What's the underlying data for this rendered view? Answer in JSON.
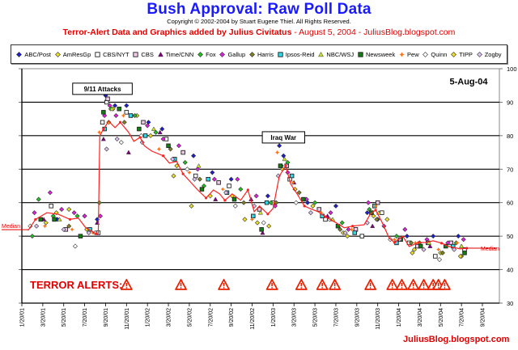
{
  "header": {
    "title": "Bush Approval:  Raw Poll Data",
    "copyright": "Copyright © 2002-2004 by Stuart Eugene Thiel.  All Rights Reserved.",
    "subtitle_bold": "Terror-Alert Data and Graphics added by Julius Civitatus",
    "subtitle_rest": " - August 5, 2004 - JuliusBlog.blogspot.com"
  },
  "footer": {
    "blog": "JuliusBlog.blogspot.com"
  },
  "colors": {
    "title": "#1a1aff",
    "accent": "#e00000",
    "median": "#ff2020"
  },
  "chart_data": {
    "type": "scatter",
    "title": "Bush Approval: Raw Poll Data",
    "date_stamp": "5-Aug-04",
    "xlabel": "",
    "ylabel": "",
    "y_axis_side": "right",
    "ylim": [
      30,
      100
    ],
    "yticks": [
      30,
      40,
      50,
      60,
      70,
      80,
      90,
      100
    ],
    "grid": true,
    "x_unit": "months since 1/20/01",
    "xlim": [
      0,
      44
    ],
    "xticks": [
      "1/20/01",
      "3/20/01",
      "5/20/01",
      "7/20/01",
      "9/20/01",
      "11/20/01",
      "1/20/02",
      "3/20/02",
      "5/20/02",
      "7/20/02",
      "9/20/02",
      "11/20/02",
      "1/20/03",
      "3/20/03",
      "5/20/03",
      "7/20/03",
      "9/20/03",
      "11/20/03",
      "1/20/04",
      "3/20/04",
      "5/20/04",
      "7/20/04",
      "9/20/04"
    ],
    "legend_position": "top",
    "legend": [
      {
        "name": "ABC/Post",
        "color": "#1c1cd0",
        "shape": "diamond"
      },
      {
        "name": "AmResGp",
        "color": "#e8e020",
        "shape": "diamond"
      },
      {
        "name": "CBS/NYT",
        "color": "#ffffff",
        "shape": "square"
      },
      {
        "name": "CBS",
        "color": "#f0c8e8",
        "shape": "square"
      },
      {
        "name": "Time/CNN",
        "color": "#800080",
        "shape": "triangle"
      },
      {
        "name": "Fox",
        "color": "#20c020",
        "shape": "diamond"
      },
      {
        "name": "Gallup",
        "color": "#e020e0",
        "shape": "diamond"
      },
      {
        "name": "Harris",
        "color": "#808020",
        "shape": "diamond"
      },
      {
        "name": "Ipsos-Reid",
        "color": "#30d8e8",
        "shape": "square"
      },
      {
        "name": "NBC/WSJ",
        "color": "#c8e030",
        "shape": "triangle"
      },
      {
        "name": "Newsweek",
        "color": "#108010",
        "shape": "square"
      },
      {
        "name": "Pew",
        "color": "#ff7010",
        "shape": "star"
      },
      {
        "name": "Quinn",
        "color": "#ffffff",
        "shape": "diamond"
      },
      {
        "name": "TIPP",
        "color": "#f0e020",
        "shape": "diamond"
      },
      {
        "name": "Zogby",
        "color": "#e0c0f0",
        "shape": "diamond"
      }
    ],
    "median": {
      "label": "Median",
      "points": [
        [
          0.6,
          51.7
        ],
        [
          1.3,
          55
        ],
        [
          2.4,
          57
        ],
        [
          3.5,
          56.5
        ],
        [
          4.6,
          55
        ],
        [
          5.4,
          55.4
        ],
        [
          6.1,
          52.5
        ],
        [
          7.1,
          50.7
        ],
        [
          7.3,
          50.7
        ],
        [
          7.45,
          80
        ],
        [
          7.8,
          82
        ],
        [
          8.3,
          84.3
        ],
        [
          8.9,
          82.4
        ],
        [
          9.4,
          84
        ],
        [
          10.2,
          81
        ],
        [
          10.7,
          78.3
        ],
        [
          11.3,
          79.5
        ],
        [
          11.7,
          77
        ],
        [
          12.4,
          75.4
        ],
        [
          13.5,
          74
        ],
        [
          14.1,
          71.8
        ],
        [
          14.8,
          72.3
        ],
        [
          15.4,
          68.6
        ],
        [
          16.1,
          66.2
        ],
        [
          16.8,
          63.8
        ],
        [
          17.6,
          61.4
        ],
        [
          18.3,
          63.8
        ],
        [
          18.9,
          62.6
        ],
        [
          19.4,
          60.7
        ],
        [
          20.1,
          62.6
        ],
        [
          20.9,
          60.7
        ],
        [
          21.6,
          63.8
        ],
        [
          22.2,
          57.3
        ],
        [
          22.7,
          59
        ],
        [
          23.5,
          56.6
        ],
        [
          24.0,
          58.3
        ],
        [
          24.6,
          67.9
        ],
        [
          25.2,
          71
        ],
        [
          25.7,
          65.5
        ],
        [
          26.3,
          62.6
        ],
        [
          27.0,
          59
        ],
        [
          27.5,
          58.3
        ],
        [
          28.3,
          57.3
        ],
        [
          29.0,
          55.8
        ],
        [
          29.9,
          54.2
        ],
        [
          30.8,
          52.5
        ],
        [
          31.6,
          53
        ],
        [
          32.7,
          53.4
        ],
        [
          33.3,
          56.6
        ],
        [
          33.8,
          57.8
        ],
        [
          34.4,
          54.2
        ],
        [
          35.1,
          49.4
        ],
        [
          35.6,
          48.1
        ],
        [
          36.4,
          50
        ],
        [
          37.0,
          46.9
        ],
        [
          37.9,
          48.1
        ],
        [
          38.6,
          48.1
        ],
        [
          39.3,
          48.6
        ],
        [
          40.1,
          47.9
        ],
        [
          40.8,
          46.9
        ],
        [
          41.9,
          46.2
        ],
        [
          42.5,
          46.4
        ]
      ]
    },
    "annotations": [
      {
        "text": "9/11 Attacks",
        "x": 7.7,
        "y": 94
      },
      {
        "text": "Iraq War",
        "x": 25.0,
        "y": 79.5
      },
      {
        "text": "5-Aug-04",
        "x": 42.5,
        "y": 96
      }
    ],
    "terror_alerts": {
      "label": "TERROR ALERTS:",
      "months": [
        10.0,
        15.2,
        19.3,
        23.9,
        26.7,
        28.7,
        29.9,
        33.3,
        35.4,
        36.3,
        37.4,
        38.4,
        39.3,
        39.8,
        40.4
      ]
    },
    "seed_note": "poll points per pollster listed as [month, approval]",
    "polls": {
      "ABC/Post": [
        [
          3.4,
          55
        ],
        [
          7.2,
          55
        ],
        [
          8.0,
          92
        ],
        [
          8.9,
          89
        ],
        [
          10.0,
          89
        ],
        [
          12.1,
          84
        ],
        [
          13.4,
          82
        ],
        [
          16.4,
          74
        ],
        [
          18.2,
          69
        ],
        [
          20.0,
          67
        ],
        [
          23.5,
          62
        ],
        [
          24.6,
          77
        ],
        [
          25.0,
          74
        ],
        [
          27.3,
          60
        ],
        [
          30.0,
          59
        ],
        [
          33.0,
          57
        ],
        [
          34.0,
          55
        ],
        [
          36.8,
          50
        ],
        [
          39.3,
          50
        ],
        [
          41.7,
          50
        ]
      ],
      "AmResGp": [
        [
          2.3,
          54
        ],
        [
          4.5,
          58
        ],
        [
          6.0,
          56
        ],
        [
          8.7,
          88
        ],
        [
          11.0,
          86
        ],
        [
          14.5,
          68
        ],
        [
          16.2,
          59
        ],
        [
          20.1,
          62
        ],
        [
          22.5,
          54
        ],
        [
          24.9,
          70
        ],
        [
          27.8,
          59
        ],
        [
          31.1,
          50
        ],
        [
          33.6,
          56
        ],
        [
          37.5,
          46
        ],
        [
          40.0,
          45
        ],
        [
          42.0,
          44
        ]
      ],
      "CBS/NYT": [
        [
          2.8,
          59
        ],
        [
          7.3,
          51
        ],
        [
          7.7,
          84
        ],
        [
          8.1,
          90
        ],
        [
          10.0,
          87
        ],
        [
          13.8,
          79
        ],
        [
          16.6,
          68
        ],
        [
          19.8,
          65
        ],
        [
          24.0,
          60
        ],
        [
          25.6,
          67
        ],
        [
          29.0,
          55
        ],
        [
          32.5,
          50
        ],
        [
          34.4,
          57
        ],
        [
          37.0,
          48
        ],
        [
          39.5,
          44
        ],
        [
          42.3,
          46
        ]
      ],
      "CBS": [
        [
          4.2,
          52
        ],
        [
          8.2,
          91
        ],
        [
          11.6,
          84
        ],
        [
          15.4,
          75
        ],
        [
          18.8,
          66
        ],
        [
          22.7,
          58
        ],
        [
          25.3,
          71
        ],
        [
          28.4,
          58
        ],
        [
          31.9,
          52
        ],
        [
          34.0,
          60
        ],
        [
          37.8,
          47
        ],
        [
          41.0,
          48
        ]
      ],
      "Time/CNN": [
        [
          2.1,
          55
        ],
        [
          7.2,
          54
        ],
        [
          7.8,
          79
        ],
        [
          10.2,
          75
        ],
        [
          13.2,
          81
        ],
        [
          18.5,
          61
        ],
        [
          21.9,
          61
        ],
        [
          23.0,
          51
        ],
        [
          26.0,
          66
        ],
        [
          29.2,
          56
        ],
        [
          33.5,
          53
        ],
        [
          36.0,
          49
        ],
        [
          39.0,
          47
        ],
        [
          42.0,
          47
        ]
      ],
      "Fox": [
        [
          1.0,
          50
        ],
        [
          1.6,
          61
        ],
        [
          3.0,
          56
        ],
        [
          5.3,
          56
        ],
        [
          7.4,
          60
        ],
        [
          8.5,
          88
        ],
        [
          10.8,
          86
        ],
        [
          12.8,
          81
        ],
        [
          15.6,
          72
        ],
        [
          17.4,
          65
        ],
        [
          20.9,
          64
        ],
        [
          23.8,
          60
        ],
        [
          25.4,
          72
        ],
        [
          28.0,
          60
        ],
        [
          30.6,
          54
        ],
        [
          33.2,
          58
        ],
        [
          35.8,
          50
        ],
        [
          38.0,
          48
        ],
        [
          41.5,
          48
        ]
      ],
      "Gallup": [
        [
          1.2,
          57
        ],
        [
          2.7,
          63
        ],
        [
          3.8,
          58
        ],
        [
          5.0,
          57
        ],
        [
          6.0,
          56
        ],
        [
          7.5,
          56
        ],
        [
          7.9,
          86
        ],
        [
          8.4,
          89
        ],
        [
          9.0,
          86
        ],
        [
          10.5,
          86
        ],
        [
          12.0,
          83
        ],
        [
          13.5,
          79
        ],
        [
          15.0,
          77
        ],
        [
          16.8,
          70
        ],
        [
          18.4,
          67
        ],
        [
          20.6,
          67
        ],
        [
          22.4,
          62
        ],
        [
          24.2,
          59
        ],
        [
          24.8,
          71
        ],
        [
          25.4,
          69
        ],
        [
          27.2,
          61
        ],
        [
          29.5,
          57
        ],
        [
          31.2,
          52
        ],
        [
          33.1,
          60
        ],
        [
          34.6,
          53
        ],
        [
          36.6,
          52
        ],
        [
          38.7,
          49
        ],
        [
          40.7,
          48
        ],
        [
          42.2,
          49
        ]
      ],
      "Harris": [
        [
          4.5,
          53
        ],
        [
          9.8,
          84
        ],
        [
          14.2,
          76
        ],
        [
          17.0,
          67
        ],
        [
          21.2,
          60
        ],
        [
          24.3,
          60
        ],
        [
          26.5,
          63
        ],
        [
          30.4,
          52
        ],
        [
          33.9,
          55
        ],
        [
          37.2,
          48
        ],
        [
          40.2,
          45
        ]
      ],
      "Ipsos-Reid": [
        [
          6.5,
          52
        ],
        [
          7.9,
          82
        ],
        [
          10.4,
          86
        ],
        [
          11.8,
          80
        ],
        [
          14.6,
          73
        ],
        [
          17.8,
          67
        ],
        [
          19.6,
          63
        ],
        [
          22.1,
          56
        ],
        [
          23.4,
          60
        ],
        [
          25.8,
          68
        ],
        [
          28.7,
          56
        ],
        [
          31.8,
          51
        ],
        [
          33.7,
          59
        ],
        [
          35.8,
          48
        ],
        [
          38.8,
          48
        ],
        [
          41.2,
          47
        ]
      ],
      "NBC/WSJ": [
        [
          3.6,
          55
        ],
        [
          8.6,
          88
        ],
        [
          12.6,
          82
        ],
        [
          16.9,
          71
        ],
        [
          22.8,
          57
        ],
        [
          25.1,
          73
        ],
        [
          29.7,
          55
        ],
        [
          34.1,
          57
        ],
        [
          38.9,
          48
        ],
        [
          42.0,
          47
        ]
      ],
      "Newsweek": [
        [
          1.8,
          55
        ],
        [
          3.1,
          55
        ],
        [
          5.6,
          50
        ],
        [
          7.8,
          87
        ],
        [
          9.3,
          88
        ],
        [
          11.2,
          82
        ],
        [
          14.0,
          77
        ],
        [
          17.2,
          64
        ],
        [
          20.3,
          61
        ],
        [
          22.9,
          52
        ],
        [
          24.7,
          71
        ],
        [
          26.9,
          61
        ],
        [
          30.2,
          53
        ],
        [
          33.4,
          57
        ],
        [
          36.2,
          49
        ],
        [
          38.1,
          47
        ],
        [
          40.5,
          47
        ],
        [
          42.3,
          45
        ]
      ],
      "Pew": [
        [
          2.2,
          53
        ],
        [
          4.8,
          52
        ],
        [
          6.8,
          51
        ],
        [
          7.4,
          81
        ],
        [
          9.7,
          86
        ],
        [
          13.1,
          76
        ],
        [
          16.0,
          69
        ],
        [
          19.2,
          64
        ],
        [
          22.0,
          55
        ],
        [
          24.4,
          75
        ],
        [
          25.9,
          66
        ],
        [
          28.6,
          57
        ],
        [
          31.5,
          52
        ],
        [
          33.8,
          59
        ],
        [
          35.6,
          49
        ],
        [
          37.6,
          48
        ],
        [
          39.8,
          46
        ],
        [
          41.6,
          48
        ]
      ],
      "Quinn": [
        [
          0.8,
          53
        ],
        [
          5.1,
          47
        ],
        [
          7.0,
          51
        ],
        [
          9.5,
          78
        ],
        [
          11.4,
          80
        ],
        [
          15.8,
          70
        ],
        [
          20.4,
          59
        ],
        [
          23.1,
          54
        ],
        [
          26.2,
          60
        ],
        [
          29.4,
          55
        ],
        [
          35.2,
          49
        ],
        [
          39.9,
          43
        ]
      ],
      "TIPP": [
        [
          3.3,
          57
        ],
        [
          6.2,
          52
        ],
        [
          8.3,
          84
        ],
        [
          12.3,
          80
        ],
        [
          14.8,
          71
        ],
        [
          18.0,
          62
        ],
        [
          21.3,
          55
        ],
        [
          23.6,
          53
        ],
        [
          26.1,
          64
        ],
        [
          30.7,
          51
        ],
        [
          34.9,
          55
        ],
        [
          37.3,
          45
        ],
        [
          41.9,
          44
        ]
      ],
      "Zogby": [
        [
          1.4,
          53
        ],
        [
          4.0,
          52
        ],
        [
          6.4,
          51
        ],
        [
          8.1,
          76
        ],
        [
          9.1,
          79
        ],
        [
          11.5,
          78
        ],
        [
          14.4,
          73
        ],
        [
          16.5,
          67
        ],
        [
          19.5,
          63
        ],
        [
          22.2,
          59
        ],
        [
          24.5,
          68
        ],
        [
          27.6,
          57
        ],
        [
          30.9,
          51
        ],
        [
          33.0,
          54
        ],
        [
          36.1,
          49
        ],
        [
          38.4,
          46
        ],
        [
          41.3,
          46
        ]
      ]
    }
  }
}
